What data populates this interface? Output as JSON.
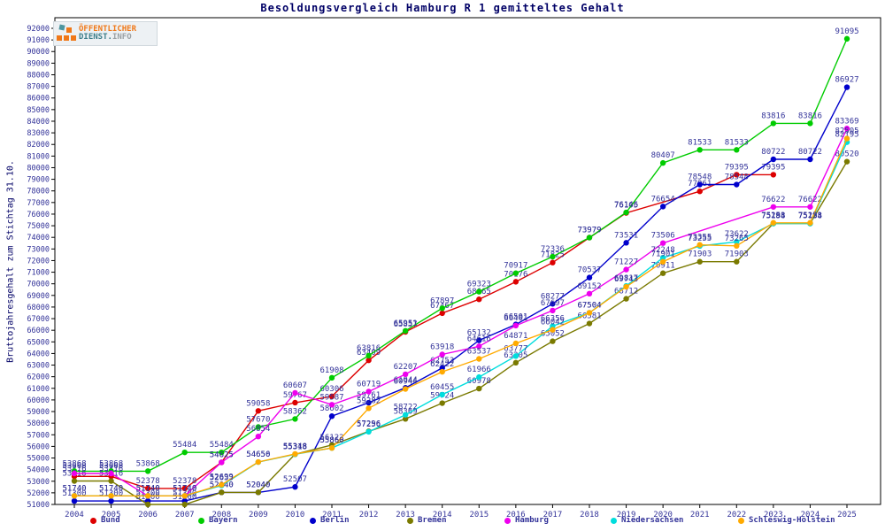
{
  "title": "Besoldungsvergleich Hamburg R 1 gemitteltes Gehalt",
  "ylabel": "Bruttojahresgehalt zum Stichtag 31.10.",
  "logo": {
    "line1": "ÖFFENTLICHER",
    "line2_a": "DIENST.",
    "line2_b": "INFO"
  },
  "colors": {
    "point_label_text": "#333399",
    "tick_label_text": "#333399",
    "title_text": "#000066",
    "axis_line": "#000000",
    "logo_orange": "#f07818",
    "logo_teal": "#3d7e8a"
  },
  "chart_data": {
    "type": "line",
    "title": "Besoldungsvergleich Hamburg R 1 gemitteltes Gehalt",
    "xlabel": "",
    "ylabel": "Bruttojahresgehalt zum Stichtag 31.10.",
    "x": [
      2004,
      2005,
      2006,
      2007,
      2008,
      2009,
      2010,
      2011,
      2012,
      2013,
      2014,
      2015,
      2016,
      2017,
      2018,
      2019,
      2020,
      2021,
      2022,
      2023,
      2024,
      2025
    ],
    "ylim": [
      51000,
      92000
    ],
    "ytick_step": 1000,
    "grid": false,
    "legend_position": "bottom",
    "point_labels": true,
    "series": [
      {
        "name": "Bund",
        "color": "#dd0000",
        "values": [
          53416,
          53416,
          52378,
          52378,
          54625,
          59058,
          59767,
          60306,
          63409,
          65857,
          67467,
          68665,
          70176,
          71825,
          73979,
          76105,
          null,
          77961,
          79395,
          79395,
          null,
          null
        ]
      },
      {
        "name": "Bayern",
        "color": "#00cc00",
        "values": [
          53868,
          53868,
          53868,
          55484,
          55484,
          57670,
          58362,
          61908,
          63816,
          65951,
          67897,
          69323,
          70917,
          72336,
          73979,
          76146,
          80407,
          81533,
          81533,
          83816,
          83816,
          91095
        ]
      },
      {
        "name": "Berlin",
        "color": "#0000cc",
        "values": [
          51300,
          51300,
          51300,
          51300,
          52040,
          52040,
          52507,
          58602,
          59761,
          61044,
          62753,
          65132,
          66501,
          68277,
          70537,
          73531,
          76654,
          78548,
          78548,
          80722,
          80722,
          86927
        ]
      },
      {
        "name": "Bremen",
        "color": "#7a7a00",
        "values": [
          53016,
          53016,
          51000,
          51000,
          52040,
          52040,
          55318,
          56122,
          57296,
          58369,
          59724,
          60978,
          63205,
          65052,
          66581,
          68712,
          70911,
          71903,
          71903,
          75194,
          75194,
          80520
        ]
      },
      {
        "name": "Hamburg",
        "color": "#ee00ee",
        "values": [
          53668,
          53668,
          51740,
          51740,
          54625,
          56854,
          60607,
          59587,
          60719,
          62207,
          63918,
          64616,
          66401,
          67697,
          69152,
          71227,
          73506,
          null,
          null,
          76622,
          76622,
          83369
        ]
      },
      {
        "name": "Niedersachsen",
        "color": "#00dddd",
        "values": [
          51740,
          51740,
          51740,
          51740,
          52633,
          54650,
          55318,
          55860,
          57256,
          58722,
          60455,
          61966,
          63777,
          66356,
          67504,
          69817,
          72248,
          73255,
          73622,
          75188,
          75188,
          82195
        ]
      },
      {
        "name": "Schleswig-Holstein",
        "color": "#ffaa00",
        "values": [
          51740,
          51740,
          51740,
          51740,
          52699,
          54656,
          55348,
          55860,
          59282,
          60944,
          62422,
          63537,
          64871,
          66042,
          67504,
          69743,
          71901,
          73355,
          73265,
          75253,
          75253,
          82505
        ]
      }
    ]
  }
}
